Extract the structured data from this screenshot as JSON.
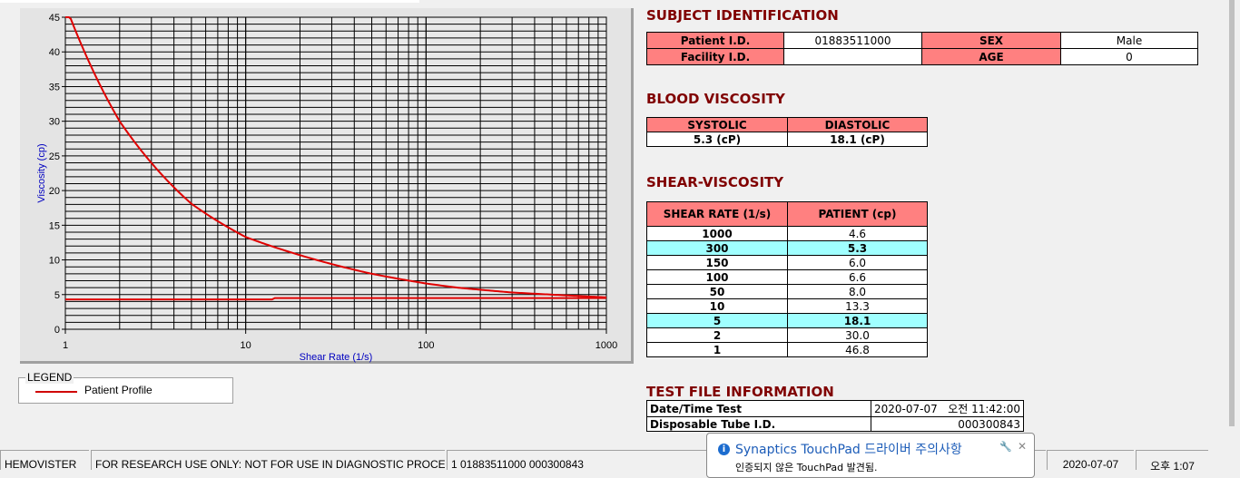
{
  "chart_data": {
    "type": "line",
    "xlabel": "Shear Rate (1/s)",
    "ylabel": "Viscosity (cp)",
    "xscale": "log",
    "xlim": [
      1,
      1000
    ],
    "ylim": [
      0,
      45
    ],
    "xticks": [
      "1",
      "10",
      "100",
      "1000"
    ],
    "yticks": [
      "0",
      "5",
      "10",
      "15",
      "20",
      "25",
      "30",
      "35",
      "40",
      "45"
    ],
    "grid": true,
    "legend_placement": "below",
    "series": [
      {
        "name": "Patient Profile",
        "color": "#e00000",
        "x": [
          1,
          2,
          5,
          10,
          50,
          100,
          150,
          300,
          1000
        ],
        "y": [
          46.8,
          30.0,
          18.1,
          13.3,
          8.0,
          6.6,
          6.0,
          5.3,
          4.6
        ]
      },
      {
        "color": "#e00000",
        "x": [
          1,
          14,
          14.5,
          1000
        ],
        "y": [
          4.3,
          4.3,
          4.5,
          4.5
        ]
      }
    ]
  },
  "legend": {
    "title": "LEGEND",
    "item": "Patient Profile"
  },
  "subject": {
    "title": "SUBJECT IDENTIFICATION",
    "patient_id_label": "Patient I.D.",
    "patient_id": "01883511000",
    "sex_label": "SEX",
    "sex": "Male",
    "facility_label": "Facility I.D.",
    "facility": "",
    "age_label": "AGE",
    "age": "0"
  },
  "blood": {
    "title": "BLOOD VISCOSITY",
    "systolic_label": "SYSTOLIC",
    "diastolic_label": "DIASTOLIC",
    "systolic": "5.3 (cP)",
    "diastolic": "18.1 (cP)"
  },
  "shear": {
    "title": "SHEAR-VISCOSITY",
    "col1": "SHEAR RATE (1/s)",
    "col2": "PATIENT (cp)",
    "rows": [
      [
        "1000",
        "4.6",
        false
      ],
      [
        "300",
        "5.3",
        true
      ],
      [
        "150",
        "6.0",
        false
      ],
      [
        "100",
        "6.6",
        false
      ],
      [
        "50",
        "8.0",
        false
      ],
      [
        "10",
        "13.3",
        false
      ],
      [
        "5",
        "18.1",
        true
      ],
      [
        "2",
        "30.0",
        false
      ],
      [
        "1",
        "46.8",
        false
      ]
    ]
  },
  "testfile": {
    "title": "TEST FILE INFORMATION",
    "date_label": "Date/Time Test",
    "date": "2020-07-07   오전 11:42:00",
    "tube_label": "Disposable Tube I.D.",
    "tube": "000300843"
  },
  "status": {
    "app": "HEMOVISTER",
    "notice": "FOR RESEARCH USE ONLY: NOT FOR USE IN DIAGNOSTIC PROCEDURES",
    "record": "1  01883511000  000300843",
    "date": "2020-07-07",
    "time": "오후 1:07"
  },
  "popup": {
    "title": "Synaptics TouchPad 드라이버 주의사항",
    "message": "인증되지 않은 TouchPad 발견됨."
  }
}
